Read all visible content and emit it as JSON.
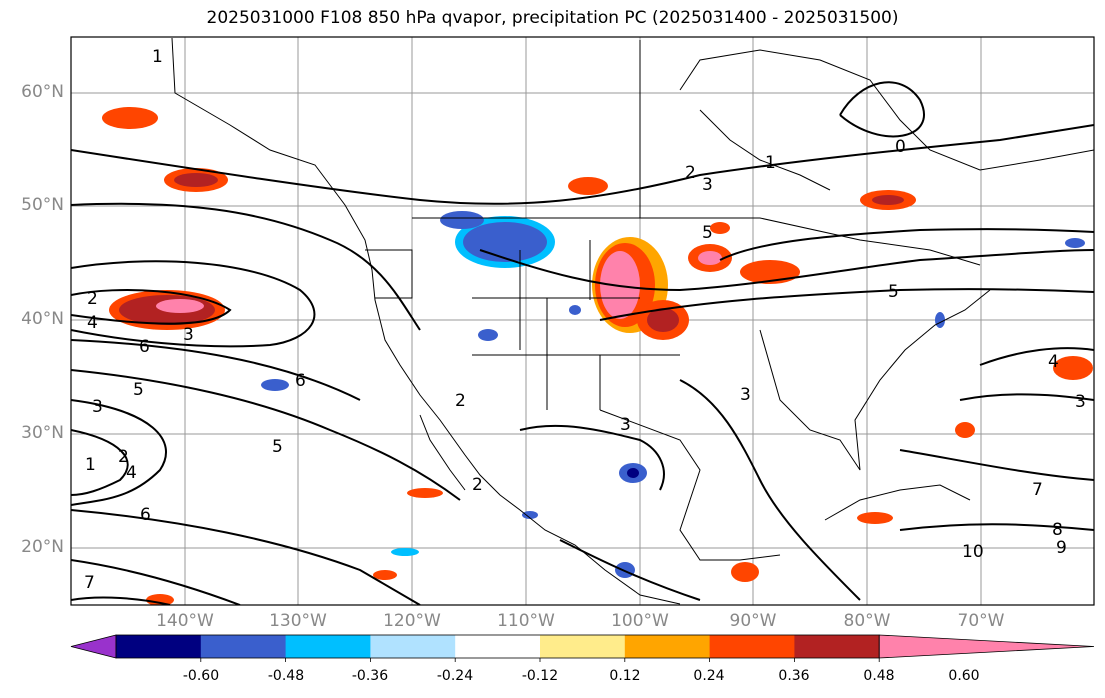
{
  "title": "2025031000 F108 850 hPa qvapor, precipitation PC (2025031400 - 2025031500)",
  "lat_labels": [
    "60°N",
    "50°N",
    "40°N",
    "30°N",
    "20°N"
  ],
  "lon_labels": [
    "140°W",
    "130°W",
    "120°W",
    "110°W",
    "100°W",
    "90°W",
    "80°W",
    "70°W"
  ],
  "colorbar": {
    "labels": [
      "-0.60",
      "-0.48",
      "-0.36",
      "-0.24",
      "-0.12",
      "0.12",
      "0.24",
      "0.36",
      "0.48",
      "0.60"
    ],
    "colors": [
      "#9932cc",
      "#000080",
      "#3a5fcd",
      "#00bfff",
      "#b0e2ff",
      "#ffffff",
      "#ffec8b",
      "#ffa500",
      "#ff4500",
      "#b22222",
      "#ff82ab"
    ]
  },
  "contour_labels": [
    "1",
    "2",
    "3",
    "4",
    "5",
    "6",
    "7",
    "8",
    "9",
    "10",
    "0"
  ],
  "colors": {
    "grid": "#999999",
    "contour": "#000000",
    "tick_text": "#888888"
  }
}
